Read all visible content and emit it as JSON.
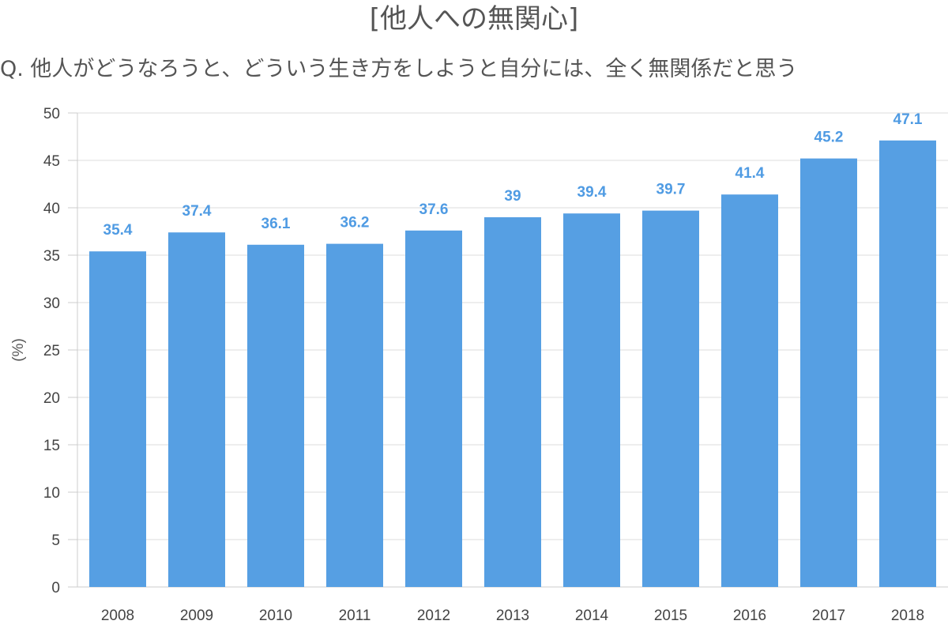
{
  "chart_data": {
    "type": "bar",
    "title": "[他人への無関心]",
    "subtitle": "Q. 他人がどうなろうと、どういう生き方をしようと自分には、全く無関係だと思う",
    "xlabel": "",
    "ylabel": "(%)",
    "ylim": [
      0,
      50
    ],
    "yticks": [
      0,
      5,
      10,
      15,
      20,
      25,
      30,
      35,
      40,
      45,
      50
    ],
    "categories": [
      "2008",
      "2009",
      "2010",
      "2011",
      "2012",
      "2013",
      "2014",
      "2015",
      "2016",
      "2017",
      "2018"
    ],
    "values": [
      35.4,
      37.4,
      36.1,
      36.2,
      37.6,
      39,
      39.4,
      39.7,
      41.4,
      45.2,
      47.1
    ],
    "data_labels": [
      "35.4",
      "37.4",
      "36.1",
      "36.2",
      "37.6",
      "39",
      "39.4",
      "39.7",
      "41.4",
      "45.2",
      "47.1"
    ],
    "bar_color": "#569fe3",
    "label_color": "#4f9be3",
    "grid": true,
    "legend": "none"
  }
}
